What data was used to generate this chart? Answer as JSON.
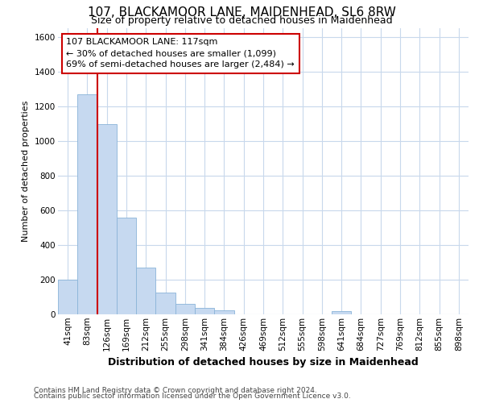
{
  "title": "107, BLACKAMOOR LANE, MAIDENHEAD, SL6 8RW",
  "subtitle": "Size of property relative to detached houses in Maidenhead",
  "xlabel": "Distribution of detached houses by size in Maidenhead",
  "ylabel": "Number of detached properties",
  "footer_line1": "Contains HM Land Registry data © Crown copyright and database right 2024.",
  "footer_line2": "Contains public sector information licensed under the Open Government Licence v3.0.",
  "bar_labels": [
    "41sqm",
    "83sqm",
    "126sqm",
    "169sqm",
    "212sqm",
    "255sqm",
    "298sqm",
    "341sqm",
    "384sqm",
    "426sqm",
    "469sqm",
    "512sqm",
    "555sqm",
    "598sqm",
    "641sqm",
    "684sqm",
    "727sqm",
    "769sqm",
    "812sqm",
    "855sqm",
    "898sqm"
  ],
  "bar_values": [
    200,
    1270,
    1095,
    560,
    270,
    125,
    60,
    35,
    25,
    0,
    0,
    0,
    0,
    0,
    20,
    0,
    0,
    0,
    0,
    0,
    0
  ],
  "bar_color": "#c6d9f0",
  "bar_edgecolor": "#8ab4d8",
  "grid_color": "#c8d8ec",
  "plot_bg_color": "#ffffff",
  "fig_bg_color": "#ffffff",
  "ylim": [
    0,
    1650
  ],
  "yticks": [
    0,
    200,
    400,
    600,
    800,
    1000,
    1200,
    1400,
    1600
  ],
  "redline_x": 1.5,
  "annotation_text": "107 BLACKAMOOR LANE: 117sqm\n← 30% of detached houses are smaller (1,099)\n69% of semi-detached houses are larger (2,484) →",
  "annotation_box_facecolor": "#ffffff",
  "annotation_box_edgecolor": "#cc0000",
  "redline_color": "#cc0000",
  "title_fontsize": 11,
  "subtitle_fontsize": 9,
  "xlabel_fontsize": 9,
  "ylabel_fontsize": 8,
  "tick_fontsize": 7.5,
  "annotation_fontsize": 8,
  "footer_fontsize": 6.5
}
